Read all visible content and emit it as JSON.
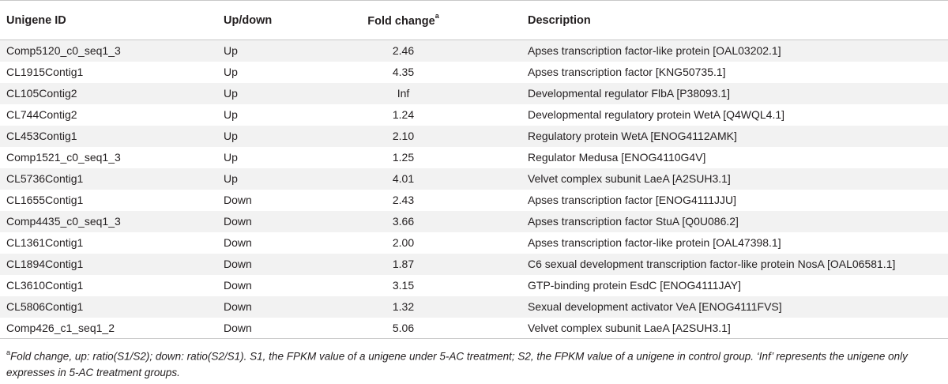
{
  "table": {
    "headers": {
      "unigene_id": "Unigene ID",
      "up_down": "Up/down",
      "fold_change": "Fold change",
      "fold_change_sup": "a",
      "description": "Description"
    },
    "rows": [
      {
        "id": "Comp5120_c0_seq1_3",
        "dir": "Up",
        "fc": "2.46",
        "desc": "Apses transcription factor-like protein [OAL03202.1]"
      },
      {
        "id": "CL1915Contig1",
        "dir": "Up",
        "fc": "4.35",
        "desc": "Apses transcription factor [KNG50735.1]"
      },
      {
        "id": "CL105Contig2",
        "dir": "Up",
        "fc": "Inf",
        "desc": "Developmental regulator FlbA [P38093.1]"
      },
      {
        "id": "CL744Contig2",
        "dir": "Up",
        "fc": "1.24",
        "desc": "Developmental regulatory protein WetA [Q4WQL4.1]"
      },
      {
        "id": "CL453Contig1",
        "dir": "Up",
        "fc": "2.10",
        "desc": "Regulatory protein WetA [ENOG4112AMK]"
      },
      {
        "id": "Comp1521_c0_seq1_3",
        "dir": "Up",
        "fc": "1.25",
        "desc": "Regulator Medusa [ENOG4110G4V]"
      },
      {
        "id": "CL5736Contig1",
        "dir": "Up",
        "fc": "4.01",
        "desc": "Velvet complex subunit LaeA [A2SUH3.1]"
      },
      {
        "id": "CL1655Contig1",
        "dir": "Down",
        "fc": "2.43",
        "desc": "Apses transcription factor [ENOG4111JJU]"
      },
      {
        "id": "Comp4435_c0_seq1_3",
        "dir": "Down",
        "fc": "3.66",
        "desc": "Apses transcription factor StuA [Q0U086.2]"
      },
      {
        "id": "CL1361Contig1",
        "dir": "Down",
        "fc": "2.00",
        "desc": "Apses transcription factor-like protein [OAL47398.1]"
      },
      {
        "id": "CL1894Contig1",
        "dir": "Down",
        "fc": "1.87",
        "desc": "C6 sexual development transcription factor-like protein NosA [OAL06581.1]"
      },
      {
        "id": "CL3610Contig1",
        "dir": "Down",
        "fc": "3.15",
        "desc": "GTP-binding protein EsdC [ENOG4111JAY]"
      },
      {
        "id": "CL5806Contig1",
        "dir": "Down",
        "fc": "1.32",
        "desc": "Sexual development activator VeA [ENOG4111FVS]"
      },
      {
        "id": "Comp426_c1_seq1_2",
        "dir": "Down",
        "fc": "5.06",
        "desc": "Velvet complex subunit LaeA [A2SUH3.1]"
      }
    ]
  },
  "footnote": {
    "marker": "a",
    "text": "Fold change, up: ratio(S1/S2); down: ratio(S2/S1). S1, the FPKM value of a unigene under 5-AC treatment; S2, the FPKM value of a unigene in control group. ‘Inf’ represents the unigene only expresses in 5-AC treatment groups."
  }
}
